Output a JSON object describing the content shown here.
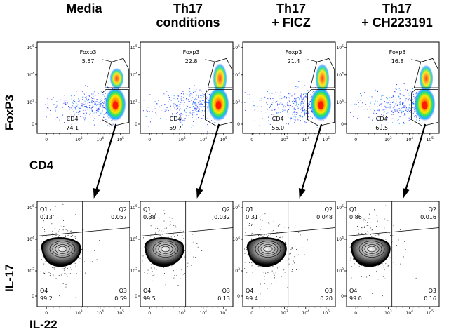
{
  "columns": [
    {
      "title_line1": "Media",
      "title_line2": ""
    },
    {
      "title_line1": "Th17",
      "title_line2": "conditions"
    },
    {
      "title_line1": "Th17",
      "title_line2": "+ FICZ"
    },
    {
      "title_line1": "Th17",
      "title_line2": "+ CH223191"
    }
  ],
  "top_row": {
    "y_label": "FoxP3",
    "x_label": "CD4",
    "gate_labels": {
      "foxp3": "Foxp3",
      "cd4": "CD4"
    },
    "panels": [
      {
        "foxp3": "5.57",
        "cd4": "74.1"
      },
      {
        "foxp3": "22.8",
        "cd4": "59.7"
      },
      {
        "foxp3": "21.4",
        "cd4": "56.0"
      },
      {
        "foxp3": "16.8",
        "cd4": "69.5"
      }
    ]
  },
  "bottom_row": {
    "y_label": "IL-17",
    "x_label": "IL-22",
    "quadrant_names": {
      "q1": "Q1",
      "q2": "Q2",
      "q3": "Q3",
      "q4": "Q4"
    },
    "panels": [
      {
        "q1": "0.13",
        "q2": "0.057",
        "q3": "0.59",
        "q4": "99.2"
      },
      {
        "q1": "0.38",
        "q2": "0.032",
        "q3": "0.13",
        "q4": "99.5"
      },
      {
        "q1": "0.31",
        "q2": "0.048",
        "q3": "0.20",
        "q4": "99.4"
      },
      {
        "q1": "0.86",
        "q2": "0.016",
        "q3": "0.16",
        "q4": "99.0"
      }
    ]
  },
  "tick_labels": {
    "x": [
      "0",
      "10^3",
      "10^4",
      "10^5"
    ],
    "y": [
      "0",
      "10^3",
      "10^4",
      "10^5"
    ]
  },
  "colors": {
    "density_high": "#ff2200",
    "density_mid": "#ffd400",
    "density_low": "#2a3cff",
    "gate": "#000000"
  }
}
